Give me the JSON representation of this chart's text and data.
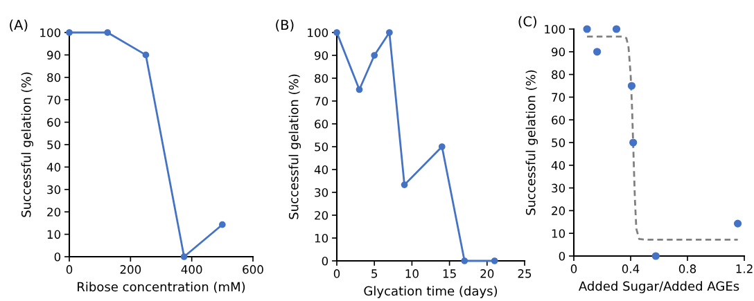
{
  "chart_data": [
    {
      "type": "line",
      "title": "(A)",
      "xlabel": "Ribose concentration (mM)",
      "ylabel": "Successful gelation (%)",
      "marker": "circle",
      "line_style": "solid",
      "xlim": [
        0,
        600
      ],
      "xticks": [
        0,
        200,
        400,
        600
      ],
      "ylim": [
        0,
        100
      ],
      "yticks": [
        0,
        10,
        20,
        30,
        40,
        50,
        60,
        70,
        80,
        90,
        100
      ],
      "series": [
        {
          "color": "#4472c4",
          "x": [
            0,
            125,
            250,
            375,
            500
          ],
          "values": [
            100,
            100,
            90,
            0,
            14.3
          ]
        }
      ]
    },
    {
      "type": "line",
      "title": "(B)",
      "xlabel": "Glycation time (days)",
      "ylabel": "Successful gelation (%)",
      "marker": "circle",
      "line_style": "solid",
      "xlim": [
        0,
        25
      ],
      "xticks": [
        0,
        5,
        10,
        15,
        20,
        25
      ],
      "ylim": [
        0,
        100
      ],
      "yticks": [
        0,
        10,
        20,
        30,
        40,
        50,
        60,
        70,
        80,
        90,
        100
      ],
      "series": [
        {
          "color": "#4472c4",
          "x": [
            0,
            3,
            5,
            7,
            9,
            14,
            17,
            21
          ],
          "values": [
            100,
            75,
            90,
            100,
            33.3,
            50,
            0,
            0
          ]
        }
      ]
    },
    {
      "type": "scatter",
      "title": "(C)",
      "xlabel": "Added Sugar/Added AGEs",
      "ylabel": "Successful gelation (%)",
      "marker": "circle",
      "xlim": [
        0,
        1.2
      ],
      "xticks": [
        0,
        0.4,
        0.8,
        1.2
      ],
      "ylim": [
        0,
        100
      ],
      "yticks": [
        0,
        10,
        20,
        30,
        40,
        50,
        60,
        70,
        80,
        90,
        100
      ],
      "series": [
        {
          "type": "line",
          "color": "#7f7f7f",
          "line_style": "dashed",
          "marker": "none",
          "x": [
            0.093,
            0.35,
            0.37,
            0.385,
            0.4,
            0.41,
            0.42,
            0.43,
            0.44,
            0.46,
            0.5,
            1.154
          ],
          "values": [
            96.7,
            96.7,
            96,
            92,
            80,
            65,
            45,
            25,
            12,
            7.5,
            7.2,
            7.2
          ]
        },
        {
          "color": "#4472c4",
          "x": [
            0.093,
            0.164,
            0.3,
            0.407,
            0.418,
            0.577,
            1.154
          ],
          "values": [
            100,
            90,
            100,
            75,
            50,
            0,
            14.3
          ]
        }
      ]
    }
  ]
}
